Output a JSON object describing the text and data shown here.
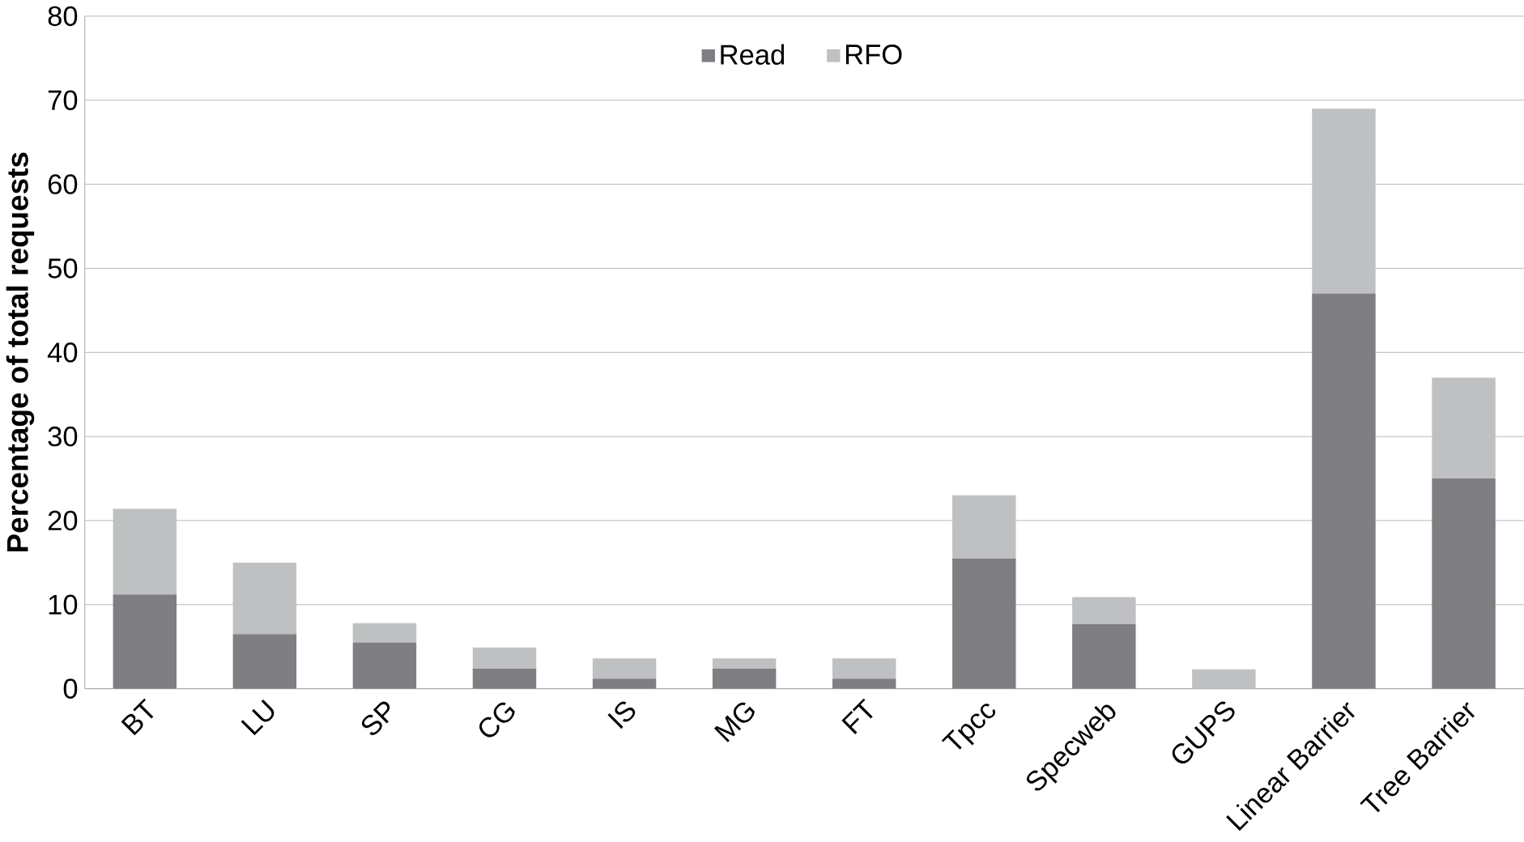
{
  "chart_data": {
    "type": "bar",
    "stacked": true,
    "ylabel": "Percentage of total requests",
    "categories": [
      "BT",
      "LU",
      "SP",
      "CG",
      "IS",
      "MG",
      "FT",
      "Tpcc",
      "Specweb",
      "GUPS",
      "Linear Barrier",
      "Tree Barrier"
    ],
    "series": [
      {
        "name": "Read",
        "color": "#7f7f83",
        "values": [
          11.2,
          6.5,
          5.5,
          2.4,
          1.2,
          2.4,
          1.2,
          15.5,
          7.7,
          0,
          47,
          25
        ]
      },
      {
        "name": "RFO",
        "color": "#bfc0c2",
        "values": [
          10.2,
          8.5,
          2.3,
          2.5,
          2.4,
          1.2,
          2.4,
          7.5,
          3.2,
          2.3,
          22,
          12
        ]
      }
    ],
    "ylim": [
      0,
      80
    ],
    "yticks": [
      0,
      10,
      20,
      30,
      40,
      50,
      60,
      70,
      80
    ],
    "grid": "y",
    "legend": "top"
  }
}
